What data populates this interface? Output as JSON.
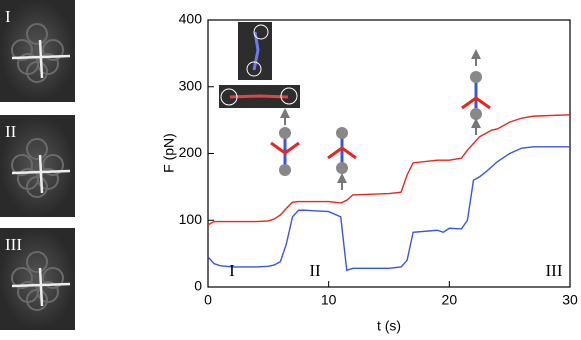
{
  "panels": [
    {
      "label": "I"
    },
    {
      "label": "II"
    },
    {
      "label": "III"
    }
  ],
  "chart_data": {
    "type": "line",
    "x_label": "t (s)",
    "y_label": "F (pN)",
    "annotations": [
      "I",
      "II",
      "III"
    ],
    "x": [
      0,
      0.5,
      1,
      2,
      4,
      5,
      5.5,
      6,
      6.5,
      7,
      7.5,
      8,
      9,
      10,
      11,
      11.5,
      12,
      15,
      16,
      16.5,
      17,
      19,
      19.5,
      20,
      21,
      21.5,
      22,
      22.5,
      23,
      23.5,
      24,
      25,
      26,
      27,
      30
    ],
    "series": [
      {
        "color": "#e8261c",
        "values": [
          93,
          98,
          98,
          98,
          98,
          99,
          102,
          108,
          118,
          127,
          128,
          128,
          128,
          128,
          126,
          130,
          138,
          140,
          142,
          168,
          186,
          190,
          190,
          190,
          193,
          205,
          215,
          225,
          230,
          235,
          237,
          247,
          253,
          256,
          258
        ]
      },
      {
        "color": "#3a55e0",
        "values": [
          45,
          35,
          32,
          30,
          30,
          31,
          33,
          38,
          65,
          105,
          115,
          115,
          114,
          113,
          105,
          25,
          28,
          28,
          30,
          40,
          82,
          85,
          82,
          88,
          87,
          100,
          160,
          165,
          172,
          180,
          188,
          200,
          208,
          210,
          210
        ]
      }
    ],
    "xlim": [
      0,
      30
    ],
    "ylim": [
      0,
      400
    ],
    "xticks": [
      0,
      10,
      20,
      30
    ],
    "yticks": [
      0,
      100,
      200,
      300,
      400
    ]
  }
}
